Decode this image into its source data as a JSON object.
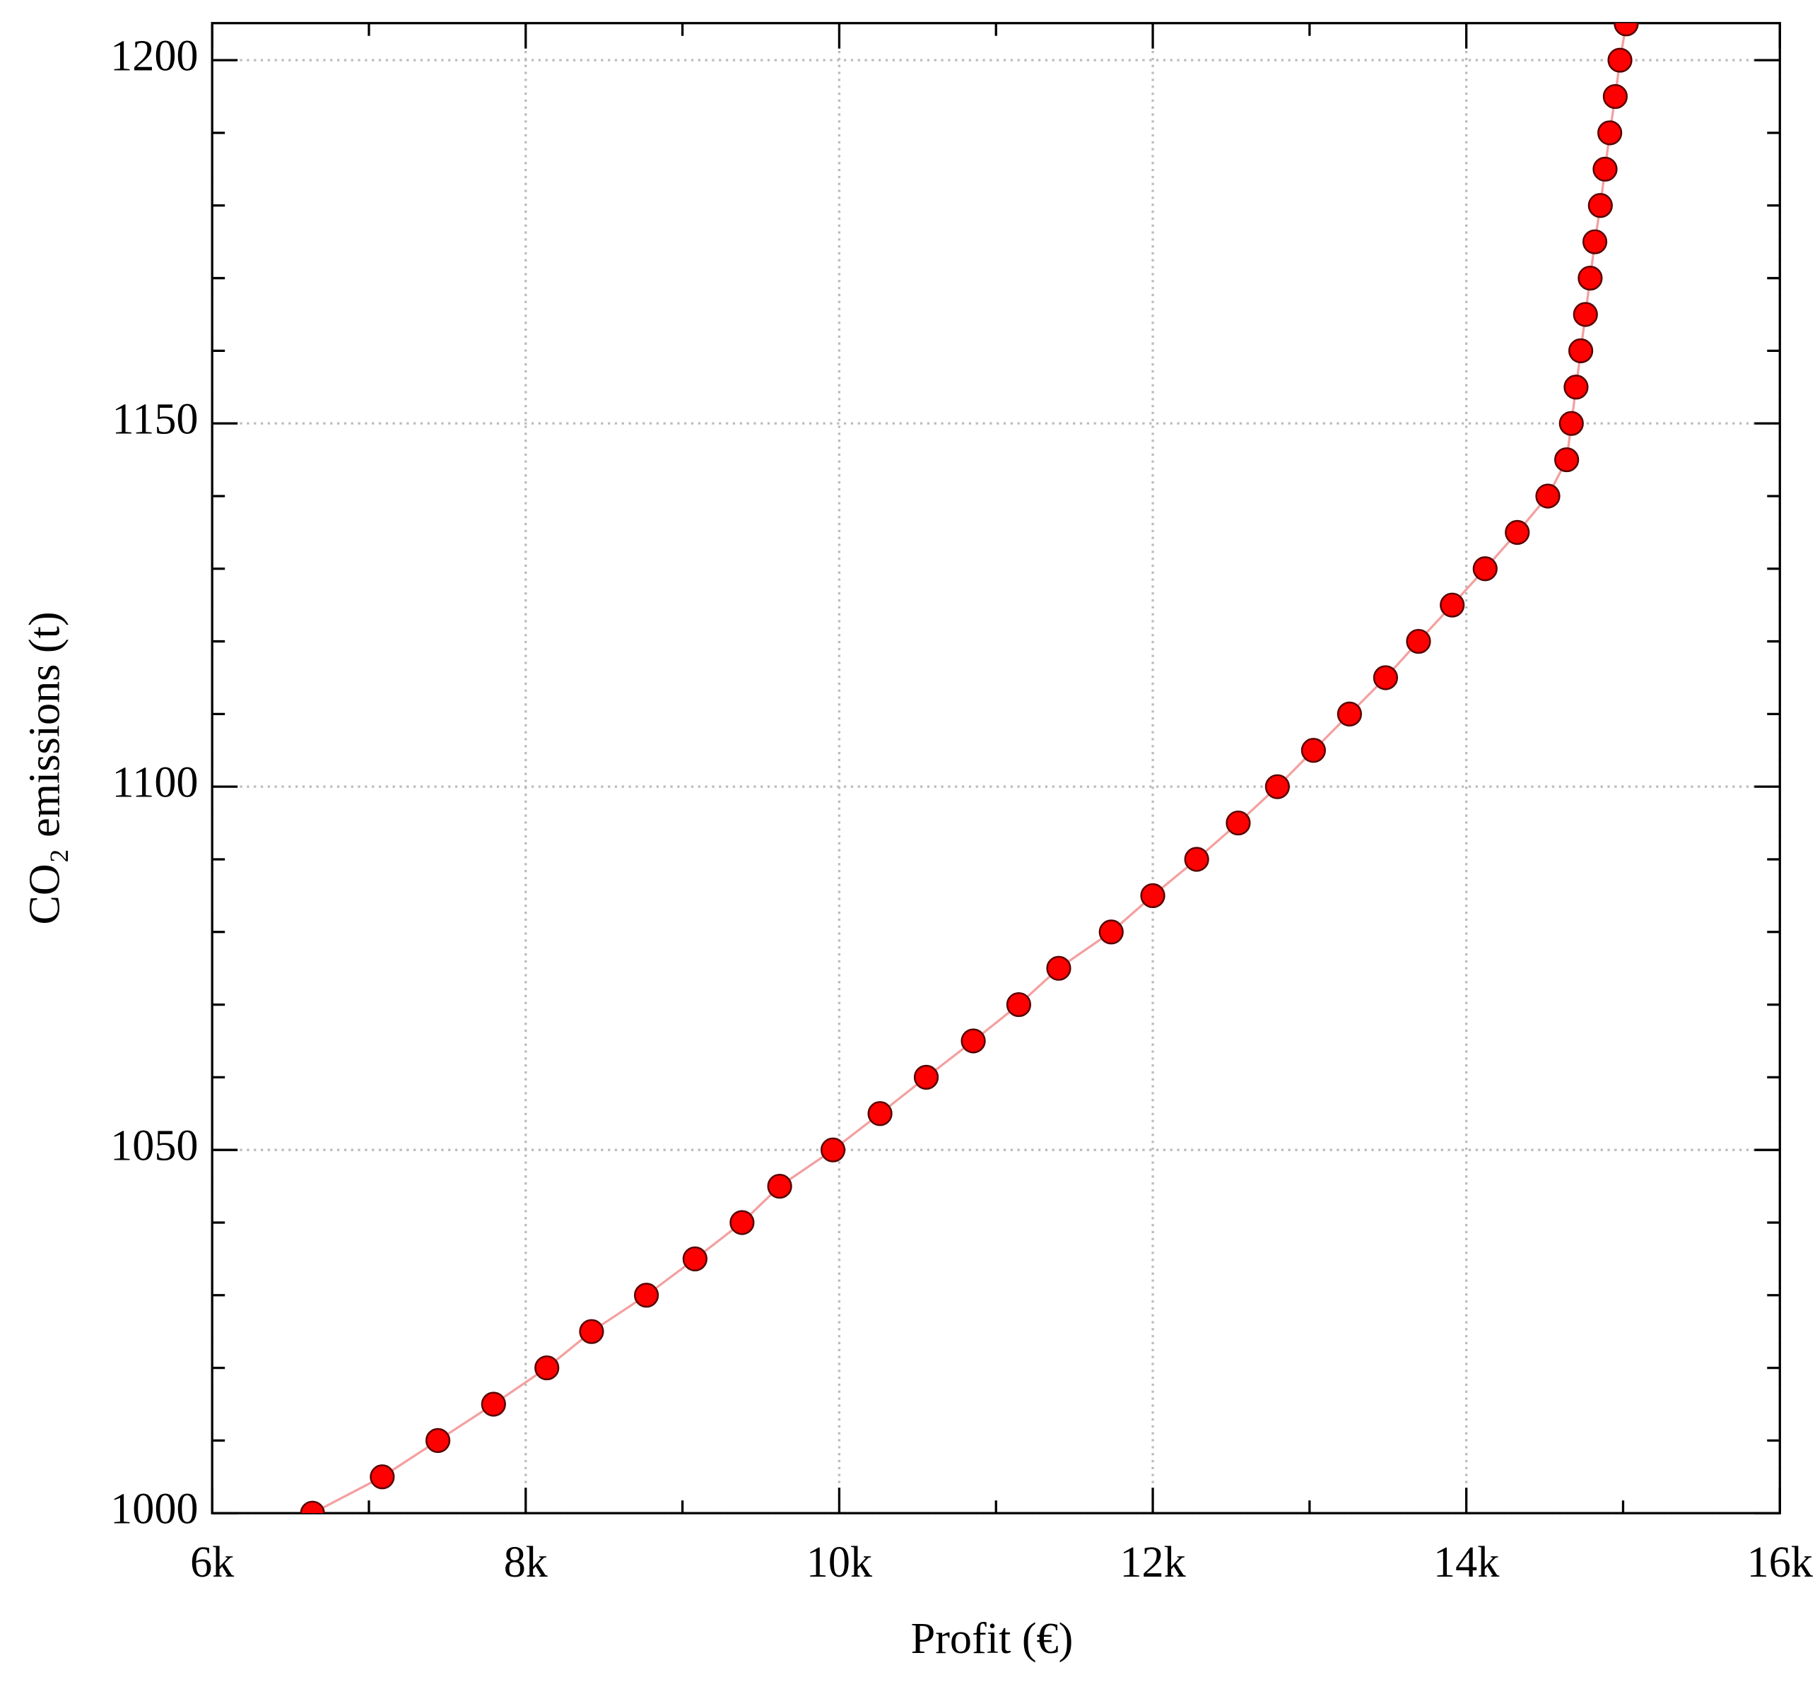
{
  "chart_data": {
    "type": "scatter",
    "xlabel": "Profit (€)",
    "ylabel": "CO₂ emissions (t)",
    "x": [
      6640,
      7085,
      7440,
      7795,
      8135,
      8420,
      8770,
      9080,
      9380,
      9620,
      9960,
      10260,
      10555,
      10855,
      11145,
      11400,
      11735,
      12000,
      12280,
      12545,
      12795,
      13025,
      13255,
      13485,
      13695,
      13910,
      14120,
      14325,
      14520,
      14640,
      14670,
      14700,
      14730,
      14760,
      14790,
      14820,
      14855,
      14885,
      14915,
      14950,
      14980,
      15020
    ],
    "values": [
      1000,
      1005,
      1010,
      1015,
      1020,
      1025,
      1030,
      1035,
      1040,
      1045,
      1050,
      1055,
      1060,
      1065,
      1070,
      1075,
      1080,
      1085,
      1090,
      1095,
      1100,
      1105,
      1110,
      1115,
      1120,
      1125,
      1130,
      1135,
      1140,
      1145,
      1150,
      1155,
      1160,
      1165,
      1170,
      1175,
      1180,
      1185,
      1190,
      1195,
      1200,
      1205
    ],
    "color": "#ff0000",
    "line_color": "#f4a0a0",
    "xlim": [
      6000,
      16000
    ],
    "ylim": [
      1000,
      1205.1
    ],
    "xticks": [
      {
        "value": 6000,
        "label": "6k"
      },
      {
        "value": 8000,
        "label": "8k"
      },
      {
        "value": 10000,
        "label": "10k"
      },
      {
        "value": 12000,
        "label": "12k"
      },
      {
        "value": 14000,
        "label": "14k"
      },
      {
        "value": 16000,
        "label": "16k"
      }
    ],
    "xminorticks": [
      7000,
      9000,
      11000,
      13000,
      15000
    ],
    "yticks": [
      1000,
      1050,
      1100,
      1150,
      1200
    ],
    "yminorticks": [
      1010,
      1020,
      1030,
      1040,
      1060,
      1070,
      1080,
      1090,
      1110,
      1120,
      1130,
      1140,
      1160,
      1170,
      1180,
      1190
    ],
    "grid": true
  }
}
